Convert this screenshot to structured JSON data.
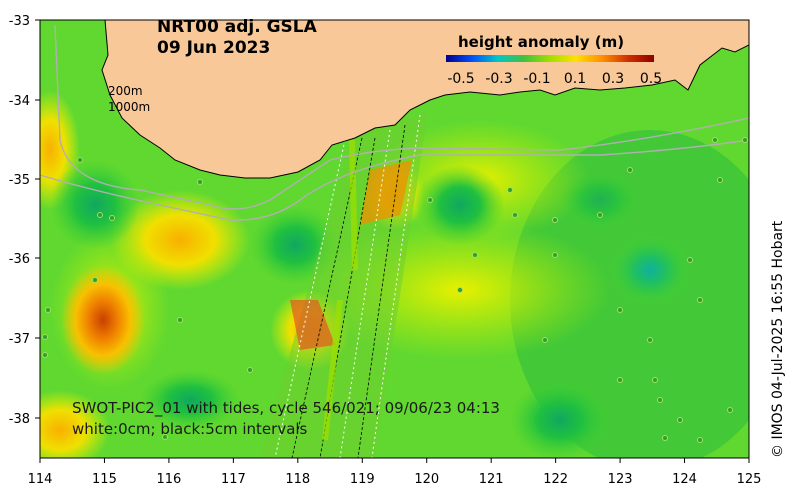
{
  "title": {
    "line1": "NRT00 adj. GSLA",
    "line2": "09 Jun 2023"
  },
  "depth_labels": [
    "200m",
    "1000m"
  ],
  "colorbar": {
    "title": "height anomaly (m)",
    "ticks": [
      "-0.5",
      "-0.3",
      "-0.1",
      "0.1",
      "0.3",
      "0.5"
    ],
    "colors": [
      "#00008f",
      "#0050ff",
      "#00c8c8",
      "#40c040",
      "#a0e000",
      "#ffe000",
      "#ff9000",
      "#d03000",
      "#8f0000"
    ]
  },
  "x_axis": {
    "ticks": [
      "114",
      "115",
      "116",
      "117",
      "118",
      "119",
      "120",
      "121",
      "122",
      "123",
      "124",
      "125"
    ]
  },
  "y_axis": {
    "ticks": [
      "-33",
      "-34",
      "-35",
      "-36",
      "-37",
      "-38"
    ]
  },
  "swot": {
    "line1": "SWOT-PIC2_01 with tides, cycle 546/021; 09/06/23 04:13",
    "line2": "white:0cm; black:5cm intervals"
  },
  "credit": "© IMOS 04-Jul-2025 16:55 Hobart",
  "colors": {
    "land": "#f9c898",
    "ocean_base": "#70e030"
  }
}
